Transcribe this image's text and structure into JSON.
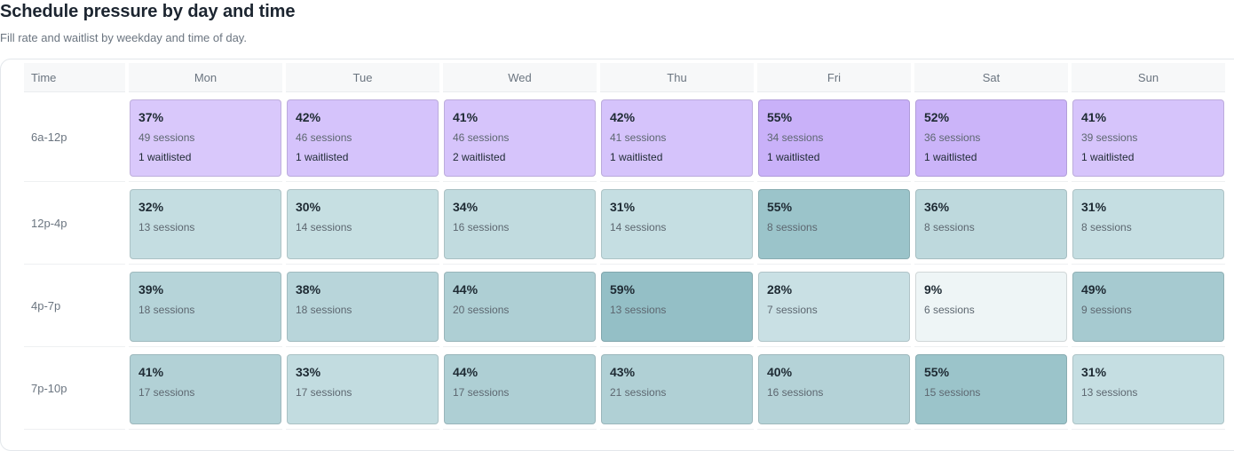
{
  "header": {
    "title": "Schedule pressure by day and time",
    "subtitle": "Fill rate and waitlist by weekday and time of day."
  },
  "table": {
    "time_header": "Time",
    "days": [
      "Mon",
      "Tue",
      "Wed",
      "Thu",
      "Fri",
      "Sat",
      "Sun"
    ],
    "rows": [
      {
        "label": "6a-12p",
        "cells": [
          {
            "pct": "37%",
            "sessions": "49 sessions",
            "waitlist": "1 waitlisted",
            "color": "#d9c8fb"
          },
          {
            "pct": "42%",
            "sessions": "46 sessions",
            "waitlist": "1 waitlisted",
            "color": "#d5c3fb"
          },
          {
            "pct": "41%",
            "sessions": "46 sessions",
            "waitlist": "2 waitlisted",
            "color": "#d6c4fb"
          },
          {
            "pct": "42%",
            "sessions": "41 sessions",
            "waitlist": "1 waitlisted",
            "color": "#d5c3fb"
          },
          {
            "pct": "55%",
            "sessions": "34 sessions",
            "waitlist": "1 waitlisted",
            "color": "#c9b1f9"
          },
          {
            "pct": "52%",
            "sessions": "36 sessions",
            "waitlist": "1 waitlisted",
            "color": "#cbb4f9"
          },
          {
            "pct": "41%",
            "sessions": "39 sessions",
            "waitlist": "1 waitlisted",
            "color": "#d6c4fb"
          }
        ]
      },
      {
        "label": "12p-4p",
        "cells": [
          {
            "pct": "32%",
            "sessions": "13 sessions",
            "color": "#c4dde1"
          },
          {
            "pct": "30%",
            "sessions": "14 sessions",
            "color": "#c6dfe2"
          },
          {
            "pct": "34%",
            "sessions": "16 sessions",
            "color": "#c1dbdf"
          },
          {
            "pct": "31%",
            "sessions": "14 sessions",
            "color": "#c5dee2"
          },
          {
            "pct": "55%",
            "sessions": "8 sessions",
            "color": "#9bc4ca"
          },
          {
            "pct": "36%",
            "sessions": "8 sessions",
            "color": "#bed9dd"
          },
          {
            "pct": "31%",
            "sessions": "8 sessions",
            "color": "#c5dee2"
          }
        ]
      },
      {
        "label": "4p-7p",
        "cells": [
          {
            "pct": "39%",
            "sessions": "18 sessions",
            "color": "#b6d4d9"
          },
          {
            "pct": "38%",
            "sessions": "18 sessions",
            "color": "#b8d5da"
          },
          {
            "pct": "44%",
            "sessions": "20 sessions",
            "color": "#aecfd4"
          },
          {
            "pct": "59%",
            "sessions": "13 sessions",
            "color": "#94bfc6"
          },
          {
            "pct": "28%",
            "sessions": "7 sessions",
            "color": "#c9e0e4"
          },
          {
            "pct": "9%",
            "sessions": "6 sessions",
            "color": "#eef5f6"
          },
          {
            "pct": "49%",
            "sessions": "9 sessions",
            "color": "#a6cad0"
          }
        ]
      },
      {
        "label": "7p-10p",
        "cells": [
          {
            "pct": "41%",
            "sessions": "17 sessions",
            "color": "#b2d1d6"
          },
          {
            "pct": "33%",
            "sessions": "17 sessions",
            "color": "#c2dce0"
          },
          {
            "pct": "44%",
            "sessions": "17 sessions",
            "color": "#aecfd4"
          },
          {
            "pct": "43%",
            "sessions": "21 sessions",
            "color": "#b0d0d5"
          },
          {
            "pct": "40%",
            "sessions": "16 sessions",
            "color": "#b4d2d7"
          },
          {
            "pct": "55%",
            "sessions": "15 sessions",
            "color": "#9bc4ca"
          },
          {
            "pct": "31%",
            "sessions": "13 sessions",
            "color": "#c5dee2"
          }
        ]
      }
    ]
  }
}
